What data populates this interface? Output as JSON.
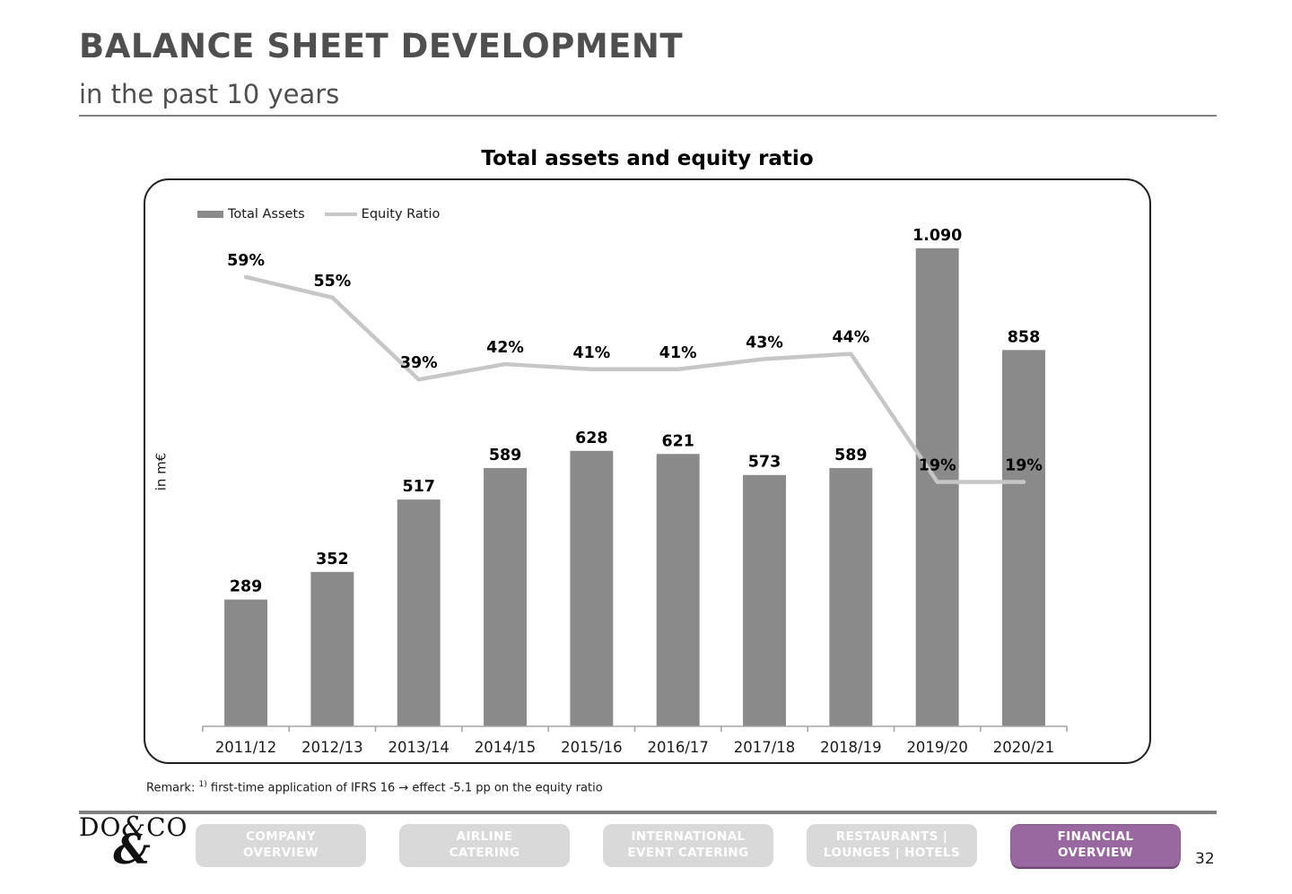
{
  "page": {
    "title": "BALANCE SHEET DEVELOPMENT",
    "subtitle": "in the past 10 years"
  },
  "chart_data": {
    "type": "bar+line",
    "title": "Total assets and equity ratio",
    "ylabel": "in m€",
    "grid": false,
    "y_axis_ticks_visible": false,
    "legend_position": "top-left",
    "categories": [
      "2011/12",
      "2012/13",
      "2013/14",
      "2014/15",
      "2015/16",
      "2016/17",
      "2017/18",
      "2018/19",
      "2019/20",
      "2020/21"
    ],
    "series": [
      {
        "name": "Total Assets",
        "type": "bar",
        "unit": "m€",
        "values": [
          289,
          352,
          517,
          589,
          628,
          621,
          573,
          589,
          1090,
          858
        ],
        "labels": [
          "289",
          "352",
          "517",
          "589",
          "628",
          "621",
          "573",
          "589",
          "1.090",
          "858"
        ],
        "color": "#8a8a8a"
      },
      {
        "name": "Equity Ratio",
        "type": "line",
        "unit": "%",
        "values": [
          59,
          55,
          39,
          42,
          41,
          41,
          43,
          44,
          19,
          19
        ],
        "labels": [
          "59%",
          "55%",
          "39%",
          "42%",
          "41%",
          "41%",
          "43%",
          "44%",
          "19%",
          "19%"
        ],
        "color": "#c6c6c6"
      }
    ]
  },
  "remark": {
    "label": "Remark:",
    "sup": "1)",
    "text": " first-time application of IFRS 16 → effect -5.1 pp on the equity ratio"
  },
  "footer": {
    "logo": {
      "left": "DO",
      "amp": "&",
      "right": "CO",
      "flourish": "&"
    },
    "nav": [
      {
        "line1": "COMPANY",
        "line2": "OVERVIEW",
        "active": false
      },
      {
        "line1": "AIRLINE",
        "line2": "CATERING",
        "active": false
      },
      {
        "line1": "INTERNATIONAL",
        "line2": "EVENT CATERING",
        "active": false
      },
      {
        "line1": "RESTAURANTS |",
        "line2": "LOUNGES | HOTELS",
        "active": false
      },
      {
        "line1": "FINANCIAL",
        "line2": "OVERVIEW",
        "active": true
      }
    ],
    "page_number": "32"
  },
  "colors": {
    "bar": "#8a8a8a",
    "line": "#c6c6c6",
    "axis": "#a6a6a6",
    "accent_purple": "#9a68a0",
    "button_gray": "#d9d9d9"
  }
}
